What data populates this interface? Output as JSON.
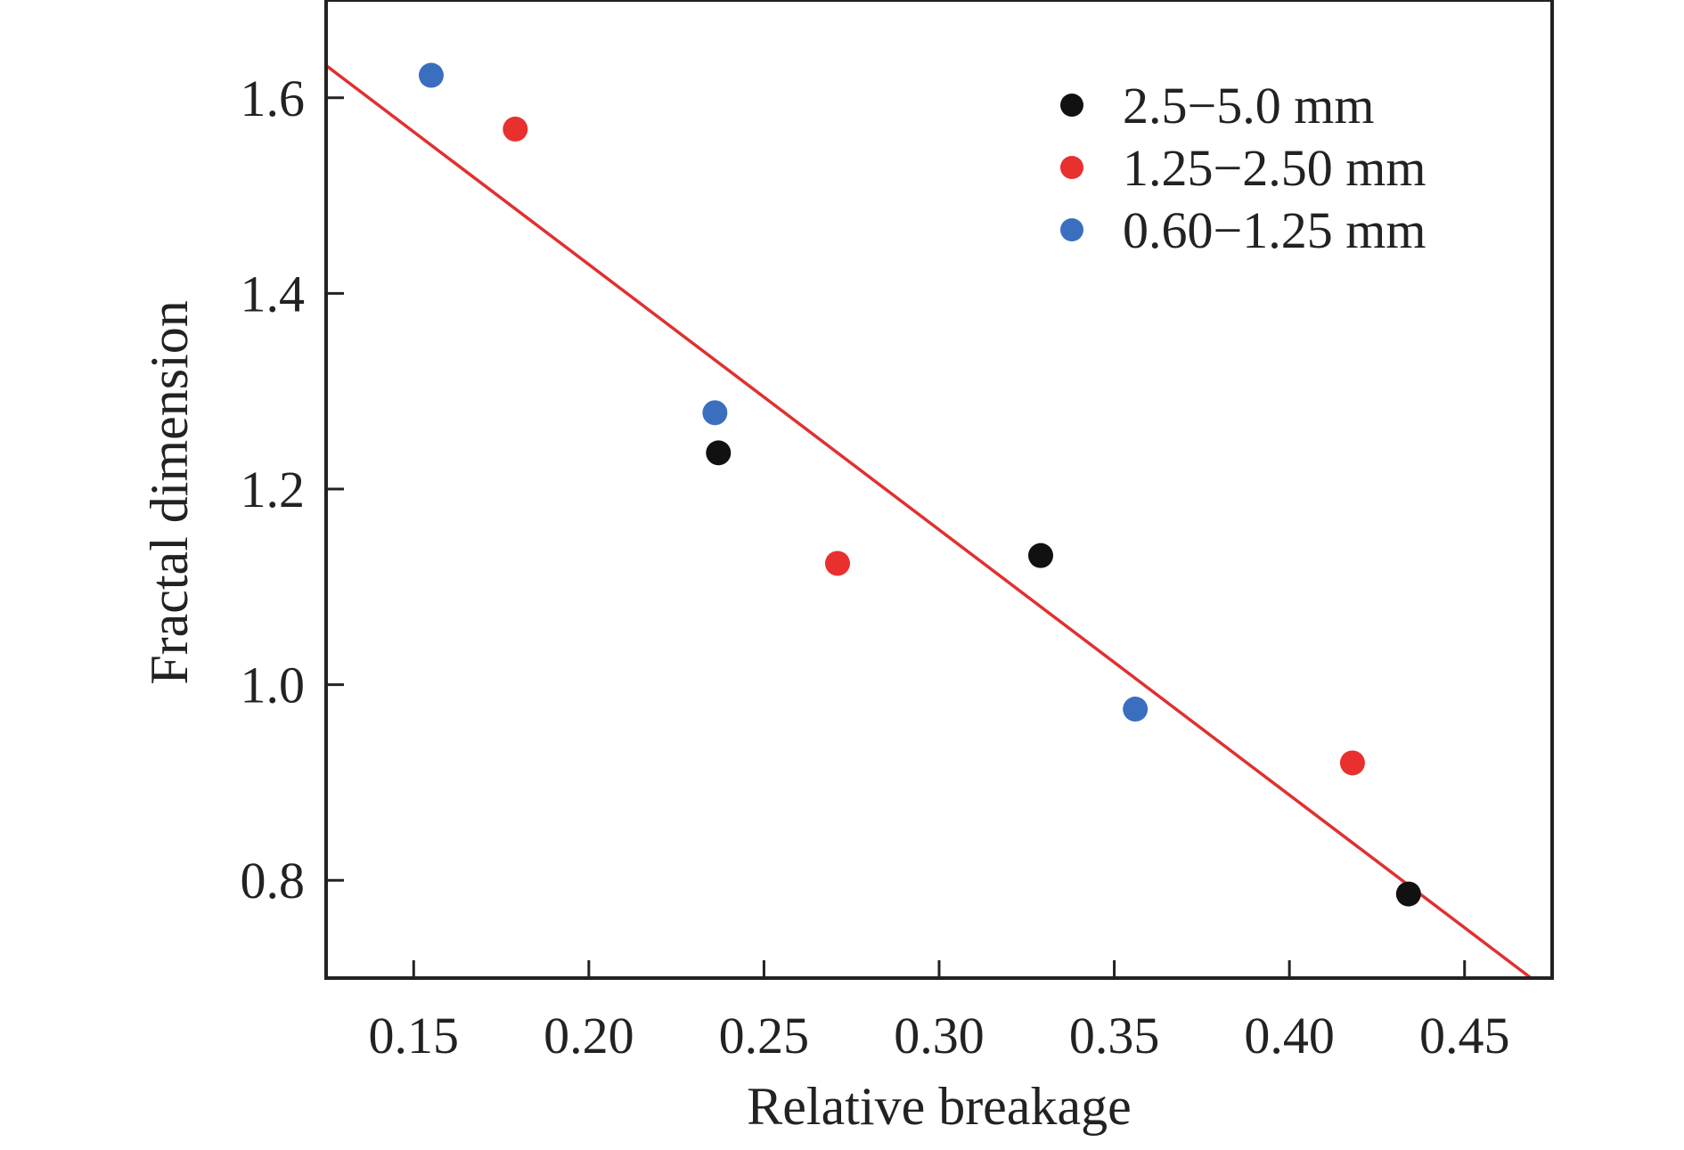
{
  "chart_data": {
    "type": "scatter",
    "title": "",
    "xlabel": "Relative breakage",
    "ylabel": "Fractal dimension",
    "xlim": [
      0.125,
      0.475
    ],
    "ylim": [
      0.7,
      1.7
    ],
    "x_ticks": [
      "0.15",
      "0.20",
      "0.25",
      "0.30",
      "0.35",
      "0.40",
      "0.45"
    ],
    "y_ticks": [
      "0.8",
      "1.0",
      "1.2",
      "1.4",
      "1.6"
    ],
    "grid": false,
    "legend_position": "top-right",
    "series": [
      {
        "name": "2.5−5.0 mm",
        "color": "#111111",
        "points": [
          [
            0.237,
            1.237
          ],
          [
            0.329,
            1.132
          ],
          [
            0.434,
            0.786
          ]
        ]
      },
      {
        "name": "1.25−2.50 mm",
        "color": "#e8302f",
        "points": [
          [
            0.179,
            1.568
          ],
          [
            0.271,
            1.124
          ],
          [
            0.418,
            0.92
          ]
        ]
      },
      {
        "name": "0.60−1.25 mm",
        "color": "#3a6fc0",
        "points": [
          [
            0.155,
            1.623
          ],
          [
            0.236,
            1.278
          ],
          [
            0.356,
            0.975
          ]
        ]
      }
    ],
    "fit_line": {
      "color": "#e03030",
      "x": [
        0.125,
        0.469
      ],
      "y": [
        1.633,
        0.7
      ]
    }
  }
}
